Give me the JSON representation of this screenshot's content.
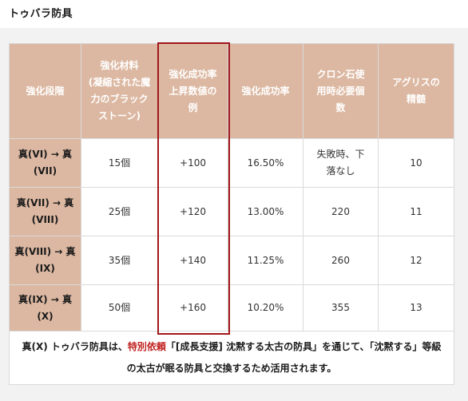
{
  "page": {
    "title": "トゥバラ防具"
  },
  "table": {
    "headers": [
      "強化段階",
      "強化材料\n(凝縮された魔力のブラックストーン)",
      "強化成功率上昇数値の例",
      "強化成功率",
      "クロン石使用時必要個数",
      "アグリスの精髄"
    ],
    "rows": [
      [
        "真(VI) → 真(VII)",
        "15個",
        "+100",
        "16.50%",
        "失敗時、下落なし",
        "10"
      ],
      [
        "真(VII) → 真(VIII)",
        "25個",
        "+120",
        "13.00%",
        "220",
        "11"
      ],
      [
        "真(VIII) → 真(IX)",
        "35個",
        "+140",
        "11.25%",
        "260",
        "12"
      ],
      [
        "真(IX) → 真(X)",
        "50個",
        "+160",
        "10.20%",
        "355",
        "13"
      ]
    ],
    "note": {
      "before": "真(X) トゥバラ防具は、",
      "highlight": "特別依頼",
      "after": "「[成長支援] 沈黙する太古の防具」を通じて、「沈黙する」等級の太古が眠る防具と交換するため活用されます。"
    }
  },
  "colors": {
    "header_bg": "#dcb8a2",
    "highlight_border": "#a0161a",
    "accent_text": "#c0211f"
  }
}
